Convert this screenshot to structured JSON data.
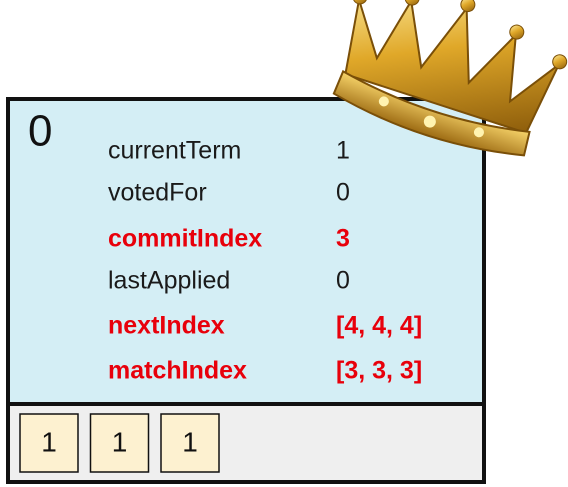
{
  "server": {
    "id": "0",
    "fields": [
      {
        "label": "currentTerm",
        "value": "1",
        "color": "#1a1a1a"
      },
      {
        "label": "votedFor",
        "value": "0",
        "color": "#1a1a1a"
      },
      {
        "label": "commitIndex",
        "value": "3",
        "color": "#e8000b"
      },
      {
        "label": "lastApplied",
        "value": "0",
        "color": "#1a1a1a"
      },
      {
        "label": "nextIndex",
        "value": "[4, 4, 4]",
        "color": "#e8000b"
      },
      {
        "label": "matchIndex",
        "value": "[3, 3, 3]",
        "color": "#e8000b"
      }
    ],
    "log": [
      "1",
      "1",
      "1"
    ]
  }
}
